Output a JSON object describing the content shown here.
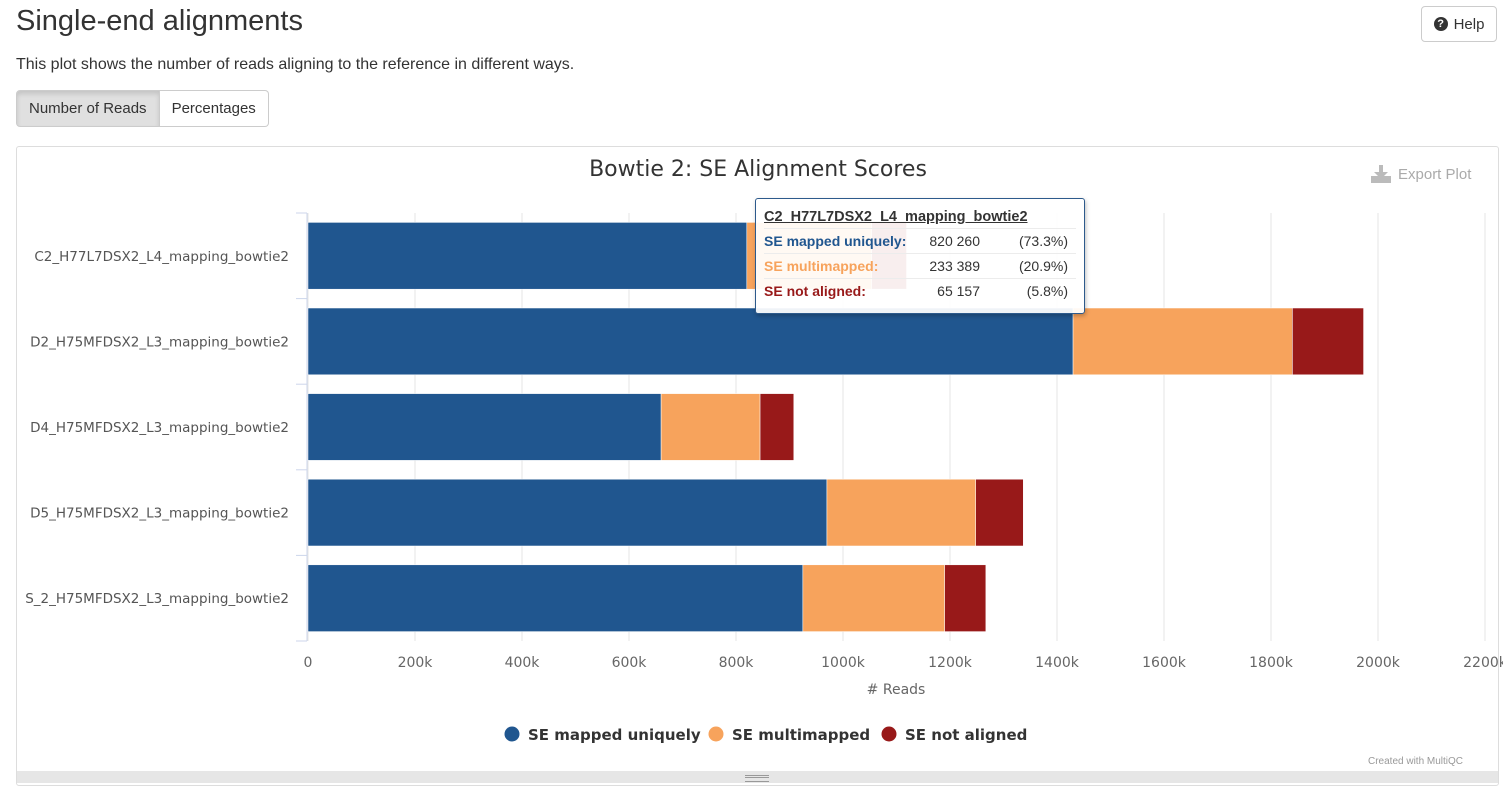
{
  "header": {
    "title": "Single-end alignments",
    "help_label": "Help",
    "description": "This plot shows the number of reads aligning to the reference in different ways."
  },
  "toggles": [
    {
      "label": "Number of Reads",
      "active": true
    },
    {
      "label": "Percentages",
      "active": false
    }
  ],
  "export_label": "Export Plot",
  "credit": "Created with MultiQC",
  "colors": {
    "uniquely": "#20568f",
    "multimapped": "#f7a35c",
    "not_aligned": "#981919"
  },
  "tooltip": {
    "title": "C2_H77L7DSX2_L4_mapping_bowtie2",
    "rows": [
      {
        "name": "SE mapped uniquely",
        "value": "820 260",
        "pct": "(73.3%)"
      },
      {
        "name": "SE multimapped",
        "value": "233 389",
        "pct": "(20.9%)"
      },
      {
        "name": "SE not aligned",
        "value": "65 157",
        "pct": "(5.8%)"
      }
    ]
  },
  "chart_data": {
    "type": "bar",
    "orientation": "horizontal",
    "stacked": true,
    "title": "Bowtie 2: SE Alignment Scores",
    "xlabel": "# Reads",
    "xlim": [
      0,
      2200000
    ],
    "x_ticks": [
      {
        "value": 0,
        "label": "0"
      },
      {
        "value": 200000,
        "label": "200k"
      },
      {
        "value": 400000,
        "label": "400k"
      },
      {
        "value": 600000,
        "label": "600k"
      },
      {
        "value": 800000,
        "label": "800k"
      },
      {
        "value": 1000000,
        "label": "1000k"
      },
      {
        "value": 1200000,
        "label": "1200k"
      },
      {
        "value": 1400000,
        "label": "1400k"
      },
      {
        "value": 1600000,
        "label": "1600k"
      },
      {
        "value": 1800000,
        "label": "1800k"
      },
      {
        "value": 2000000,
        "label": "2000k"
      },
      {
        "value": 2200000,
        "label": "2200k"
      }
    ],
    "grid": true,
    "legend_position": "bottom",
    "categories": [
      "C2_H77L7DSX2_L4_mapping_bowtie2",
      "D2_H75MFDSX2_L3_mapping_bowtie2",
      "D4_H75MFDSX2_L3_mapping_bowtie2",
      "D5_H75MFDSX2_L3_mapping_bowtie2",
      "S_2_H75MFDSX2_L3_mapping_bowtie2"
    ],
    "series": [
      {
        "name": "SE mapped uniquely",
        "color": "#20568f",
        "values": [
          820260,
          1430000,
          660000,
          970000,
          925000
        ]
      },
      {
        "name": "SE multimapped",
        "color": "#f7a35c",
        "values": [
          233389,
          410000,
          185000,
          278000,
          265000
        ]
      },
      {
        "name": "SE not aligned",
        "color": "#981919",
        "values": [
          65157,
          133000,
          63000,
          89000,
          77000
        ]
      }
    ]
  }
}
